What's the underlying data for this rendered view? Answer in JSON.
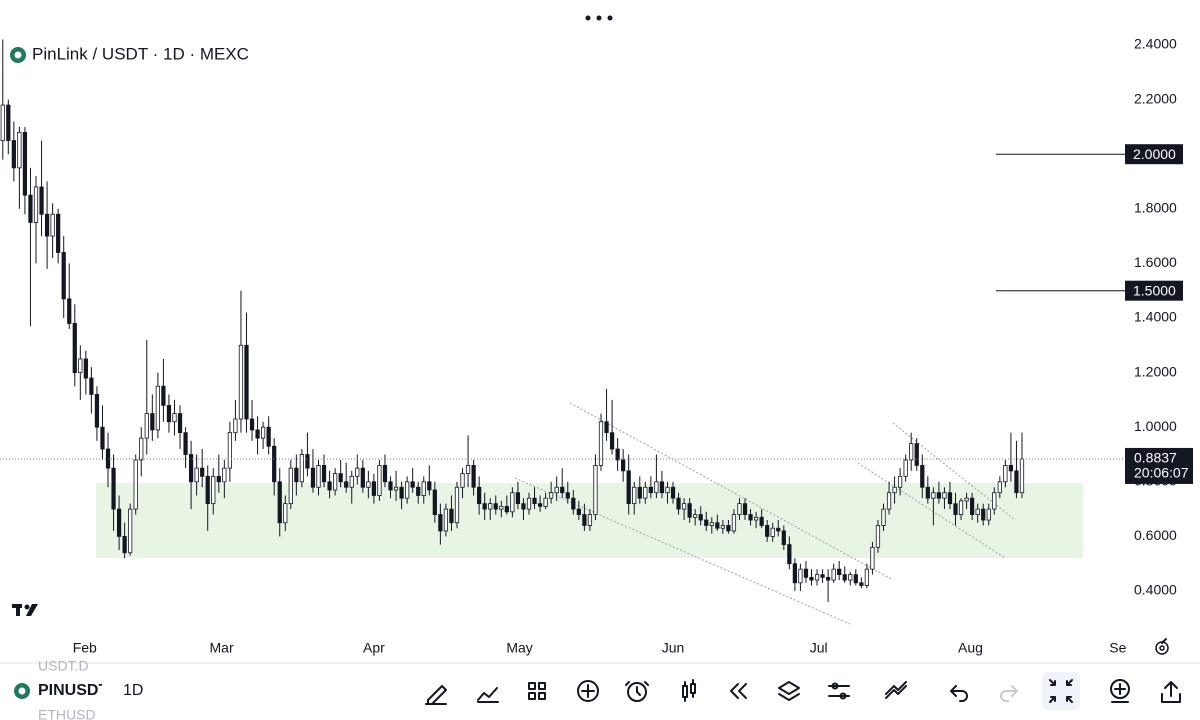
{
  "chart_data": {
    "type": "candlestick",
    "title": "PinLink / USDT · 1D · MEXC",
    "up_color": "#ffffff",
    "down_color": "#131722",
    "ohlc": [
      [
        2.05,
        2.42,
        1.98,
        2.18
      ],
      [
        2.18,
        2.2,
        2.0,
        2.05
      ],
      [
        2.05,
        2.12,
        1.9,
        1.95
      ],
      [
        1.95,
        2.1,
        1.8,
        2.08
      ],
      [
        2.08,
        2.1,
        1.78,
        1.85
      ],
      [
        1.85,
        1.95,
        1.37,
        1.75
      ],
      [
        1.75,
        1.92,
        1.6,
        1.88
      ],
      [
        1.88,
        2.05,
        1.7,
        1.78
      ],
      [
        1.78,
        1.9,
        1.58,
        1.7
      ],
      [
        1.7,
        1.82,
        1.62,
        1.78
      ],
      [
        1.78,
        1.8,
        1.6,
        1.64
      ],
      [
        1.64,
        1.7,
        1.4,
        1.47
      ],
      [
        1.47,
        1.6,
        1.36,
        1.38
      ],
      [
        1.38,
        1.45,
        1.15,
        1.2
      ],
      [
        1.2,
        1.3,
        1.1,
        1.25
      ],
      [
        1.25,
        1.28,
        1.12,
        1.18
      ],
      [
        1.18,
        1.22,
        1.05,
        1.12
      ],
      [
        1.12,
        1.15,
        0.95,
        1.0
      ],
      [
        1.0,
        1.08,
        0.88,
        0.92
      ],
      [
        0.92,
        0.98,
        0.78,
        0.85
      ],
      [
        0.85,
        0.9,
        0.62,
        0.7
      ],
      [
        0.7,
        0.75,
        0.55,
        0.6
      ],
      [
        0.6,
        0.65,
        0.52,
        0.54
      ],
      [
        0.54,
        0.72,
        0.53,
        0.7
      ],
      [
        0.7,
        0.9,
        0.68,
        0.88
      ],
      [
        0.88,
        1.0,
        0.82,
        0.96
      ],
      [
        0.96,
        1.32,
        0.9,
        1.05
      ],
      [
        1.05,
        1.12,
        0.95,
        0.99
      ],
      [
        0.99,
        1.2,
        0.96,
        1.15
      ],
      [
        1.15,
        1.25,
        1.02,
        1.08
      ],
      [
        1.08,
        1.12,
        0.98,
        1.02
      ],
      [
        1.02,
        1.1,
        0.97,
        1.05
      ],
      [
        1.05,
        1.08,
        0.92,
        0.98
      ],
      [
        0.98,
        1.0,
        0.85,
        0.9
      ],
      [
        0.9,
        0.95,
        0.7,
        0.8
      ],
      [
        0.8,
        0.9,
        0.75,
        0.85
      ],
      [
        0.85,
        0.92,
        0.78,
        0.82
      ],
      [
        0.82,
        0.86,
        0.62,
        0.72
      ],
      [
        0.72,
        0.85,
        0.68,
        0.82
      ],
      [
        0.82,
        0.9,
        0.76,
        0.8
      ],
      [
        0.8,
        0.88,
        0.74,
        0.85
      ],
      [
        0.85,
        1.02,
        0.8,
        0.98
      ],
      [
        0.98,
        1.1,
        0.95,
        1.03
      ],
      [
        1.03,
        1.5,
        0.98,
        1.3
      ],
      [
        1.3,
        1.42,
        0.98,
        1.03
      ],
      [
        1.03,
        1.1,
        0.95,
        0.99
      ],
      [
        0.99,
        1.04,
        0.9,
        0.96
      ],
      [
        0.96,
        1.02,
        0.92,
        1.0
      ],
      [
        1.0,
        1.04,
        0.9,
        0.93
      ],
      [
        0.93,
        0.96,
        0.75,
        0.8
      ],
      [
        0.8,
        0.85,
        0.6,
        0.65
      ],
      [
        0.65,
        0.75,
        0.62,
        0.72
      ],
      [
        0.72,
        0.88,
        0.7,
        0.85
      ],
      [
        0.85,
        0.9,
        0.75,
        0.8
      ],
      [
        0.8,
        0.92,
        0.78,
        0.9
      ],
      [
        0.9,
        0.98,
        0.82,
        0.85
      ],
      [
        0.85,
        0.92,
        0.76,
        0.78
      ],
      [
        0.78,
        0.88,
        0.75,
        0.86
      ],
      [
        0.86,
        0.9,
        0.78,
        0.8
      ],
      [
        0.8,
        0.84,
        0.74,
        0.77
      ],
      [
        0.77,
        0.85,
        0.75,
        0.83
      ],
      [
        0.83,
        0.88,
        0.78,
        0.8
      ],
      [
        0.8,
        0.87,
        0.76,
        0.78
      ],
      [
        0.78,
        0.84,
        0.72,
        0.82
      ],
      [
        0.82,
        0.9,
        0.79,
        0.85
      ],
      [
        0.85,
        0.88,
        0.76,
        0.78
      ],
      [
        0.78,
        0.84,
        0.74,
        0.8
      ],
      [
        0.8,
        0.83,
        0.72,
        0.75
      ],
      [
        0.75,
        0.88,
        0.73,
        0.86
      ],
      [
        0.86,
        0.9,
        0.78,
        0.8
      ],
      [
        0.8,
        0.82,
        0.74,
        0.77
      ],
      [
        0.77,
        0.84,
        0.73,
        0.78
      ],
      [
        0.78,
        0.8,
        0.7,
        0.74
      ],
      [
        0.74,
        0.82,
        0.72,
        0.8
      ],
      [
        0.8,
        0.85,
        0.76,
        0.78
      ],
      [
        0.78,
        0.8,
        0.72,
        0.75
      ],
      [
        0.75,
        0.82,
        0.72,
        0.8
      ],
      [
        0.8,
        0.86,
        0.75,
        0.77
      ],
      [
        0.77,
        0.8,
        0.65,
        0.68
      ],
      [
        0.68,
        0.72,
        0.57,
        0.62
      ],
      [
        0.62,
        0.72,
        0.6,
        0.7
      ],
      [
        0.7,
        0.75,
        0.62,
        0.65
      ],
      [
        0.65,
        0.8,
        0.63,
        0.78
      ],
      [
        0.78,
        0.85,
        0.74,
        0.83
      ],
      [
        0.83,
        0.97,
        0.78,
        0.86
      ],
      [
        0.86,
        0.88,
        0.75,
        0.78
      ],
      [
        0.78,
        0.82,
        0.68,
        0.72
      ],
      [
        0.72,
        0.76,
        0.66,
        0.7
      ],
      [
        0.7,
        0.74,
        0.66,
        0.72
      ],
      [
        0.72,
        0.75,
        0.68,
        0.7
      ],
      [
        0.7,
        0.73,
        0.67,
        0.71
      ],
      [
        0.71,
        0.75,
        0.68,
        0.69
      ],
      [
        0.69,
        0.78,
        0.67,
        0.76
      ],
      [
        0.76,
        0.8,
        0.7,
        0.72
      ],
      [
        0.72,
        0.74,
        0.66,
        0.7
      ],
      [
        0.7,
        0.76,
        0.68,
        0.74
      ],
      [
        0.74,
        0.78,
        0.7,
        0.72
      ],
      [
        0.72,
        0.75,
        0.69,
        0.71
      ],
      [
        0.71,
        0.76,
        0.7,
        0.74
      ],
      [
        0.74,
        0.8,
        0.72,
        0.76
      ],
      [
        0.76,
        0.82,
        0.73,
        0.78
      ],
      [
        0.78,
        0.85,
        0.74,
        0.76
      ],
      [
        0.76,
        0.8,
        0.72,
        0.74
      ],
      [
        0.74,
        0.77,
        0.68,
        0.7
      ],
      [
        0.7,
        0.73,
        0.66,
        0.68
      ],
      [
        0.68,
        0.72,
        0.62,
        0.64
      ],
      [
        0.64,
        0.7,
        0.62,
        0.68
      ],
      [
        0.68,
        0.9,
        0.66,
        0.86
      ],
      [
        0.86,
        1.05,
        0.84,
        1.02
      ],
      [
        1.02,
        1.14,
        0.95,
        0.98
      ],
      [
        0.98,
        1.1,
        0.9,
        0.92
      ],
      [
        0.92,
        0.96,
        0.84,
        0.88
      ],
      [
        0.88,
        0.92,
        0.8,
        0.84
      ],
      [
        0.84,
        0.9,
        0.68,
        0.72
      ],
      [
        0.72,
        0.8,
        0.68,
        0.78
      ],
      [
        0.78,
        0.82,
        0.72,
        0.74
      ],
      [
        0.74,
        0.8,
        0.72,
        0.78
      ],
      [
        0.78,
        0.82,
        0.74,
        0.76
      ],
      [
        0.76,
        0.9,
        0.74,
        0.8
      ],
      [
        0.8,
        0.84,
        0.74,
        0.76
      ],
      [
        0.76,
        0.8,
        0.72,
        0.78
      ],
      [
        0.78,
        0.8,
        0.72,
        0.74
      ],
      [
        0.74,
        0.76,
        0.68,
        0.7
      ],
      [
        0.7,
        0.74,
        0.66,
        0.72
      ],
      [
        0.72,
        0.74,
        0.65,
        0.67
      ],
      [
        0.67,
        0.7,
        0.64,
        0.68
      ],
      [
        0.68,
        0.71,
        0.64,
        0.66
      ],
      [
        0.66,
        0.69,
        0.62,
        0.64
      ],
      [
        0.64,
        0.67,
        0.61,
        0.65
      ],
      [
        0.65,
        0.68,
        0.62,
        0.63
      ],
      [
        0.63,
        0.66,
        0.61,
        0.64
      ],
      [
        0.64,
        0.66,
        0.61,
        0.62
      ],
      [
        0.62,
        0.7,
        0.61,
        0.68
      ],
      [
        0.68,
        0.74,
        0.66,
        0.72
      ],
      [
        0.72,
        0.74,
        0.66,
        0.68
      ],
      [
        0.68,
        0.7,
        0.64,
        0.66
      ],
      [
        0.66,
        0.69,
        0.63,
        0.67
      ],
      [
        0.67,
        0.7,
        0.63,
        0.64
      ],
      [
        0.64,
        0.66,
        0.58,
        0.6
      ],
      [
        0.6,
        0.65,
        0.58,
        0.63
      ],
      [
        0.63,
        0.66,
        0.6,
        0.62
      ],
      [
        0.62,
        0.64,
        0.55,
        0.57
      ],
      [
        0.57,
        0.6,
        0.48,
        0.5
      ],
      [
        0.5,
        0.52,
        0.4,
        0.43
      ],
      [
        0.43,
        0.5,
        0.4,
        0.48
      ],
      [
        0.48,
        0.51,
        0.43,
        0.45
      ],
      [
        0.45,
        0.48,
        0.42,
        0.44
      ],
      [
        0.44,
        0.48,
        0.42,
        0.46
      ],
      [
        0.46,
        0.48,
        0.43,
        0.45
      ],
      [
        0.45,
        0.48,
        0.36,
        0.44
      ],
      [
        0.44,
        0.5,
        0.43,
        0.48
      ],
      [
        0.48,
        0.51,
        0.44,
        0.46
      ],
      [
        0.46,
        0.49,
        0.43,
        0.44
      ],
      [
        0.44,
        0.47,
        0.42,
        0.46
      ],
      [
        0.46,
        0.48,
        0.42,
        0.43
      ],
      [
        0.43,
        0.45,
        0.41,
        0.42
      ],
      [
        0.42,
        0.5,
        0.41,
        0.48
      ],
      [
        0.48,
        0.58,
        0.46,
        0.56
      ],
      [
        0.56,
        0.66,
        0.54,
        0.64
      ],
      [
        0.64,
        0.72,
        0.62,
        0.7
      ],
      [
        0.7,
        0.8,
        0.68,
        0.76
      ],
      [
        0.76,
        0.82,
        0.72,
        0.78
      ],
      [
        0.78,
        0.85,
        0.75,
        0.82
      ],
      [
        0.82,
        0.9,
        0.8,
        0.88
      ],
      [
        0.88,
        0.98,
        0.84,
        0.94
      ],
      [
        0.94,
        0.96,
        0.84,
        0.86
      ],
      [
        0.86,
        0.9,
        0.74,
        0.78
      ],
      [
        0.78,
        0.82,
        0.72,
        0.74
      ],
      [
        0.74,
        0.78,
        0.64,
        0.76
      ],
      [
        0.76,
        0.8,
        0.72,
        0.74
      ],
      [
        0.74,
        0.78,
        0.7,
        0.76
      ],
      [
        0.76,
        0.8,
        0.7,
        0.72
      ],
      [
        0.72,
        0.76,
        0.64,
        0.68
      ],
      [
        0.68,
        0.74,
        0.66,
        0.73
      ],
      [
        0.73,
        0.76,
        0.7,
        0.74
      ],
      [
        0.74,
        0.76,
        0.66,
        0.68
      ],
      [
        0.68,
        0.72,
        0.65,
        0.7
      ],
      [
        0.7,
        0.72,
        0.64,
        0.66
      ],
      [
        0.66,
        0.72,
        0.64,
        0.7
      ],
      [
        0.7,
        0.78,
        0.68,
        0.76
      ],
      [
        0.76,
        0.82,
        0.74,
        0.8
      ],
      [
        0.8,
        0.88,
        0.78,
        0.86
      ],
      [
        0.86,
        0.98,
        0.8,
        0.84
      ],
      [
        0.84,
        0.95,
        0.74,
        0.76
      ],
      [
        0.76,
        0.98,
        0.74,
        0.8837
      ]
    ],
    "xlim": [
      -0.5,
      203.5
    ],
    "xticks": [
      {
        "value": 14.8,
        "label": "Feb"
      },
      {
        "value": 39.5,
        "label": "Mar"
      },
      {
        "value": 67,
        "label": "Apr"
      },
      {
        "value": 93.3,
        "label": "May"
      },
      {
        "value": 121,
        "label": "Jun"
      },
      {
        "value": 147.3,
        "label": "Jul"
      },
      {
        "value": 174.7,
        "label": "Aug"
      },
      {
        "value": 201.3,
        "label": "Se"
      }
    ],
    "ylim": [
      0.4,
      2.4
    ],
    "yticks": [
      {
        "value": 0.4,
        "label": "0.4000"
      },
      {
        "value": 0.6,
        "label": "0.6000"
      },
      {
        "value": 0.8,
        "label": "0.8000"
      },
      {
        "value": 1.0,
        "label": "1.0000"
      },
      {
        "value": 1.2,
        "label": "1.2000"
      },
      {
        "value": 1.4,
        "label": "1.4000"
      },
      {
        "value": 1.6,
        "label": "1.6000"
      },
      {
        "value": 1.8,
        "label": "1.8000"
      },
      {
        "value": 2.0,
        "label": "2.0000"
      },
      {
        "value": 2.2,
        "label": "2.2000"
      },
      {
        "value": 2.4,
        "label": "2.4000"
      }
    ],
    "levels": [
      {
        "value": 2,
        "label": "2.0000"
      },
      {
        "value": 1.5,
        "label": "1.5000"
      }
    ],
    "last_price": 0.8837,
    "countdown": "20:06:07"
  },
  "toolbar": {
    "symbol": "PINUSDT",
    "interval": "1D",
    "watchlist": [
      "USDT.D",
      "ETHUSD"
    ]
  }
}
